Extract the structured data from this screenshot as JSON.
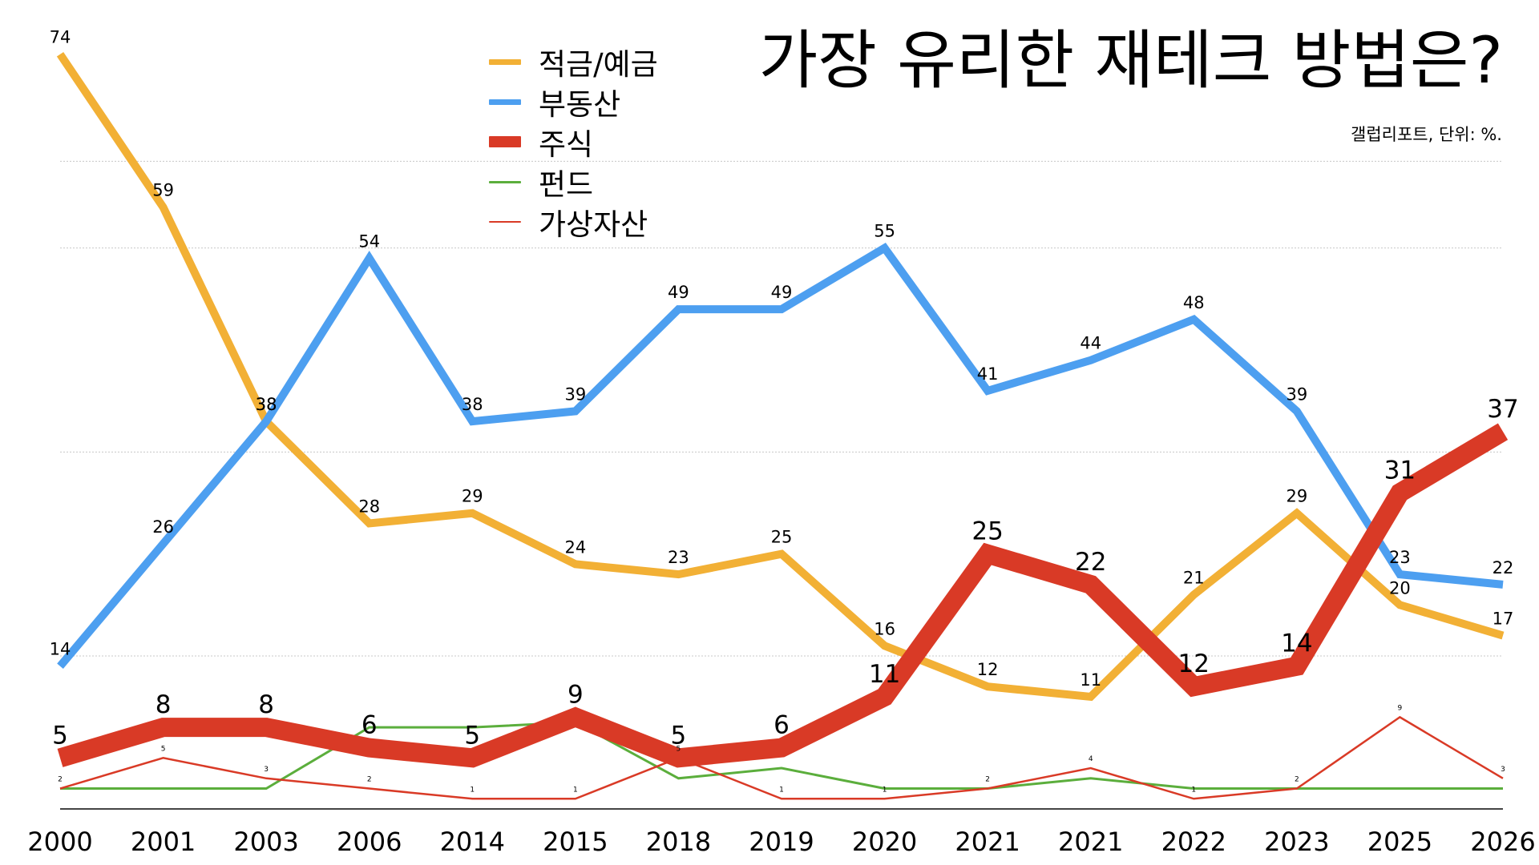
{
  "title": "가장 유리한 재테크 방법은?",
  "source": "갤럽리포트, 단위: %.",
  "legend": {
    "savings": "적금/예금",
    "realestate": "부동산",
    "stocks": "주식",
    "funds": "펀드",
    "crypto": "가상자산"
  },
  "chart_data": {
    "type": "line",
    "title": "가장 유리한 재테크 방법은?",
    "xlabel": "",
    "ylabel": "",
    "ylim": [
      0,
      75
    ],
    "grid": true,
    "legend_position": "top-center",
    "categories": [
      "2000",
      "2001",
      "2003",
      "2006",
      "2014",
      "2015",
      "2018",
      "2019",
      "2020",
      "2021",
      "2021",
      "2022",
      "2023",
      "2025",
      "2026"
    ],
    "series": [
      {
        "key": "savings",
        "name": "적금/예금",
        "color": "#F2B035",
        "values": [
          74,
          59,
          38,
          28,
          29,
          24,
          23,
          25,
          16,
          12,
          11,
          21,
          29,
          20,
          17
        ],
        "value_labels": [
          74,
          59,
          38,
          28,
          29,
          24,
          23,
          25,
          16,
          12,
          11,
          21,
          29,
          20,
          17
        ]
      },
      {
        "key": "realestate",
        "name": "부동산",
        "color": "#4D9FF0",
        "values": [
          14,
          26,
          38,
          54,
          38,
          39,
          49,
          49,
          55,
          41,
          44,
          48,
          39,
          23,
          22
        ],
        "value_labels": [
          14,
          26,
          38,
          54,
          38,
          39,
          49,
          49,
          55,
          41,
          44,
          48,
          39,
          23,
          22
        ]
      },
      {
        "key": "stocks",
        "name": "주식",
        "color": "#D93A26",
        "values": [
          5,
          8,
          8,
          6,
          5,
          9,
          5,
          6,
          11,
          25,
          22,
          12,
          14,
          31,
          37
        ],
        "value_labels": [
          5,
          8,
          8,
          6,
          5,
          9,
          5,
          6,
          11,
          25,
          22,
          12,
          14,
          31,
          37
        ]
      },
      {
        "key": "funds",
        "name": "펀드",
        "color": "#5BAE3C",
        "values": [
          2,
          2,
          2,
          8,
          8,
          8.5,
          3,
          4,
          2,
          2,
          3,
          2,
          2,
          2,
          2
        ],
        "value_labels": []
      },
      {
        "key": "crypto",
        "name": "가상자산",
        "color": "#D93A26",
        "values": [
          2,
          5,
          3,
          2,
          1,
          1,
          5,
          1,
          1,
          2,
          4,
          1,
          2,
          9,
          3
        ],
        "value_labels": [
          2,
          5,
          3,
          2,
          1,
          1,
          5,
          1,
          1,
          2,
          4,
          1,
          2,
          9,
          3
        ]
      }
    ]
  }
}
